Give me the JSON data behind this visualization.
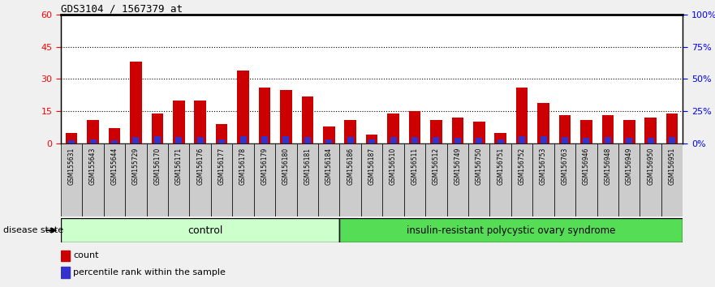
{
  "title": "GDS3104 / 1567379_at",
  "samples": [
    "GSM155631",
    "GSM155643",
    "GSM155644",
    "GSM155729",
    "GSM156170",
    "GSM156171",
    "GSM156176",
    "GSM156177",
    "GSM156178",
    "GSM156179",
    "GSM156180",
    "GSM156181",
    "GSM156184",
    "GSM156186",
    "GSM156187",
    "GSM156510",
    "GSM156511",
    "GSM156512",
    "GSM156749",
    "GSM156750",
    "GSM156751",
    "GSM156752",
    "GSM156753",
    "GSM156763",
    "GSM156946",
    "GSM156948",
    "GSM156949",
    "GSM156950",
    "GSM156951"
  ],
  "counts": [
    5,
    11,
    7,
    38,
    14,
    20,
    20,
    9,
    34,
    26,
    25,
    22,
    8,
    11,
    4,
    14,
    15,
    11,
    12,
    10,
    5,
    26,
    19,
    13,
    11,
    13,
    11,
    12,
    14
  ],
  "percentile_ranks": [
    1.5,
    2.0,
    1.5,
    3.0,
    3.5,
    3.0,
    3.0,
    2.0,
    3.5,
    3.5,
    3.5,
    3.0,
    2.0,
    3.0,
    2.0,
    3.0,
    3.0,
    3.0,
    2.5,
    2.5,
    2.0,
    3.5,
    3.5,
    3.0,
    2.5,
    3.0,
    2.5,
    2.5,
    3.0
  ],
  "n_control": 13,
  "n_disease": 16,
  "bar_color": "#cc0000",
  "percentile_color": "#3333cc",
  "yticks_left": [
    0,
    15,
    30,
    45,
    60
  ],
  "yticks_right": [
    0,
    25,
    50,
    75,
    100
  ],
  "ylim_left": [
    0,
    60
  ],
  "ylim_right": [
    0,
    100
  ],
  "control_label": "control",
  "disease_label": "insulin-resistant polycystic ovary syndrome",
  "control_color": "#ccffcc",
  "disease_color": "#55dd55",
  "group_label": "disease state",
  "legend_count": "count",
  "legend_percentile": "percentile rank within the sample",
  "tick_bg_color": "#cccccc",
  "plot_bg": "#ffffff",
  "fig_bg": "#f0f0f0"
}
